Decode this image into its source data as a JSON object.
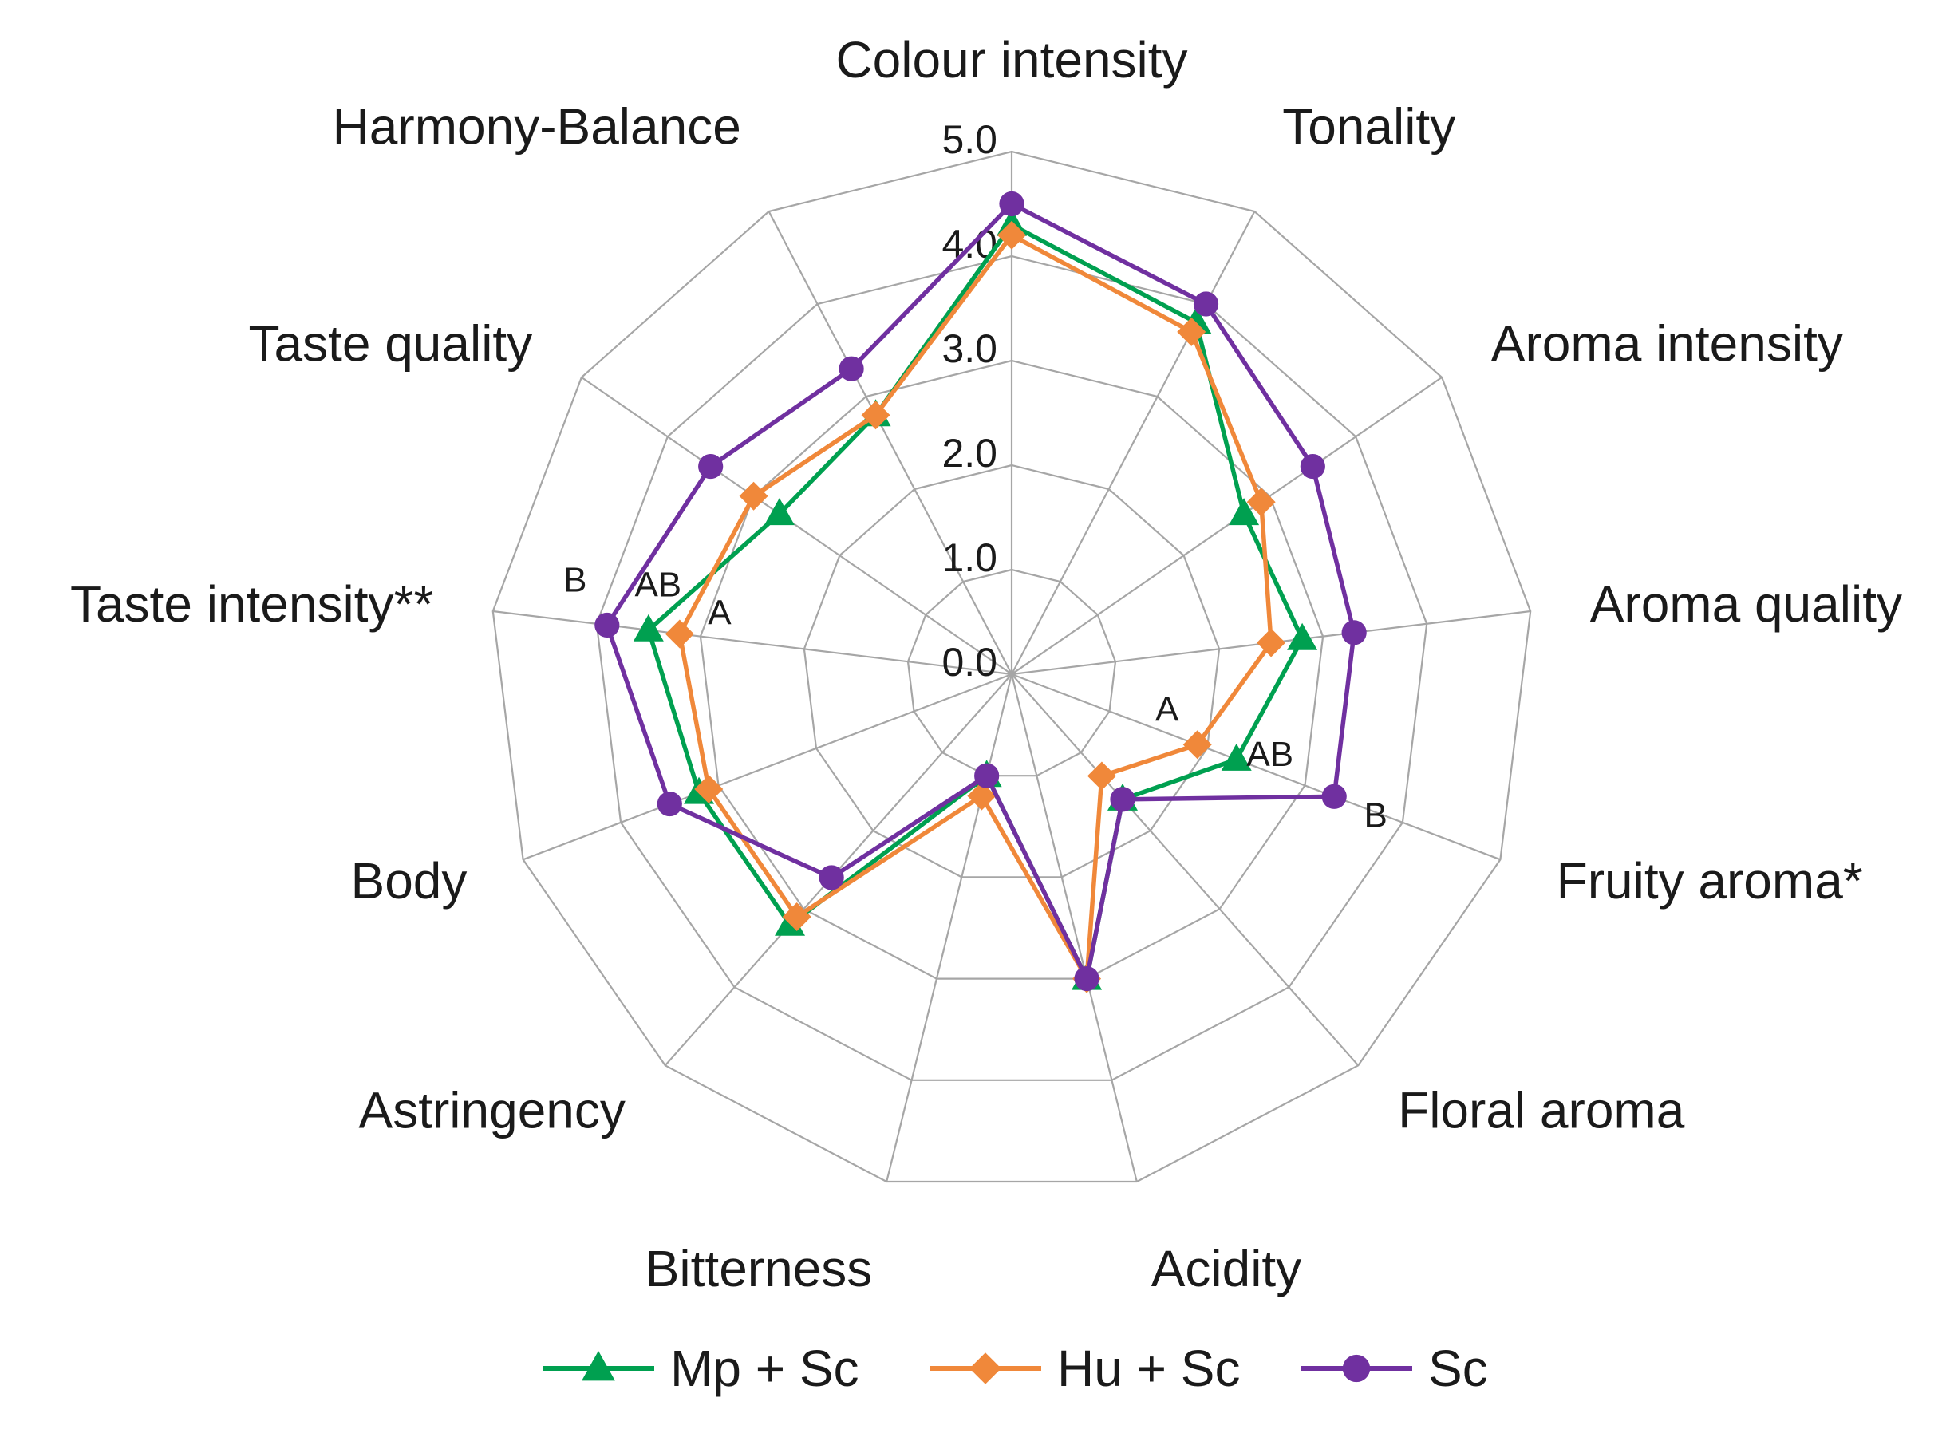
{
  "chart_data": {
    "type": "radar",
    "categories": [
      "Colour intensity",
      "Tonality",
      "Aroma intensity",
      "Aroma quality",
      "Fruity aroma*",
      "Floral aroma",
      "Acidity",
      "Bitterness",
      "Astringency",
      "Body",
      "Taste intensity**",
      "Taste quality",
      "Harmony-Balance"
    ],
    "ticks": [
      "0.0",
      "1.0",
      "2.0",
      "3.0",
      "4.0",
      "5.0"
    ],
    "rlim": [
      0,
      5
    ],
    "series": [
      {
        "name": "Mp + Sc",
        "color": "#00a050",
        "marker": "triangle",
        "values": [
          4.3,
          3.8,
          2.7,
          2.8,
          2.3,
          1.6,
          3.0,
          1.0,
          3.2,
          3.2,
          3.5,
          2.7,
          2.8
        ]
      },
      {
        "name": "Hu + Sc",
        "color": "#f0883a",
        "marker": "diamond",
        "values": [
          4.2,
          3.7,
          2.9,
          2.5,
          1.9,
          1.3,
          3.0,
          1.2,
          3.1,
          3.1,
          3.2,
          3.0,
          2.8
        ]
      },
      {
        "name": "Sc",
        "color": "#7030a0",
        "marker": "circle",
        "values": [
          4.5,
          4.0,
          3.5,
          3.3,
          3.3,
          1.6,
          3.0,
          1.0,
          2.6,
          3.5,
          3.9,
          3.5,
          3.3
        ]
      }
    ],
    "annotations": [
      {
        "text": "B",
        "category": "Taste intensity**"
      },
      {
        "text": "AB",
        "category": "Taste intensity**"
      },
      {
        "text": "A",
        "category": "Taste intensity**"
      },
      {
        "text": "A",
        "category": "Fruity aroma*"
      },
      {
        "text": "AB",
        "category": "Fruity aroma*"
      },
      {
        "text": "B",
        "category": "Fruity aroma*"
      }
    ],
    "legend_position": "bottom",
    "grid": true
  }
}
